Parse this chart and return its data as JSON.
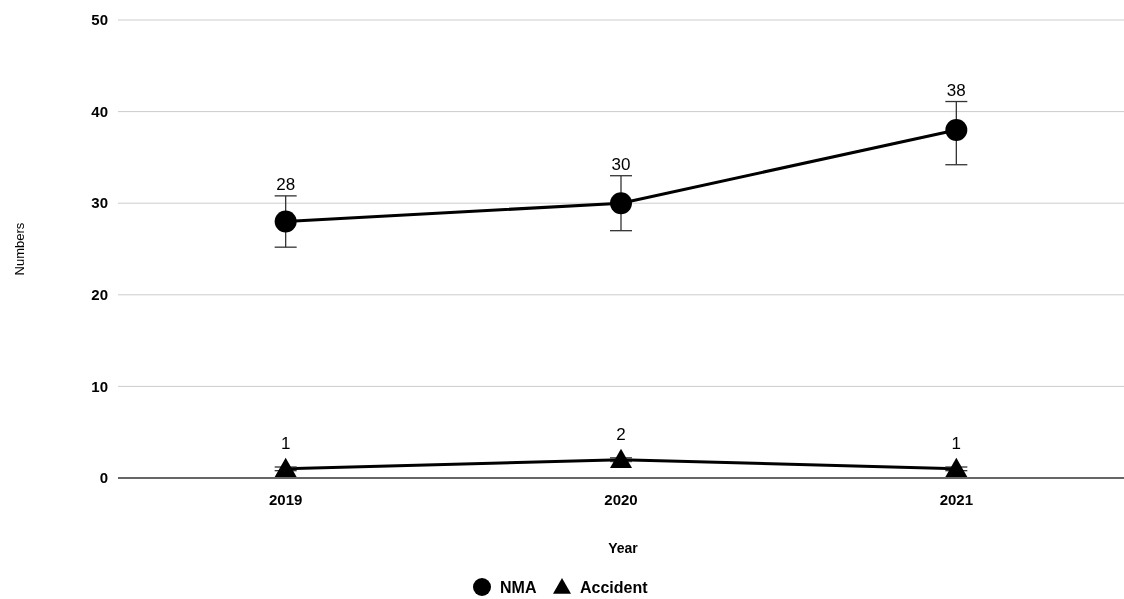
{
  "chart_data": {
    "type": "line",
    "xlabel": "Year",
    "ylabel": "Numbers",
    "categories": [
      "2019",
      "2020",
      "2021"
    ],
    "series": [
      {
        "name": "NMA",
        "color": "#000000",
        "marker": "circle",
        "values": [
          28,
          30,
          38
        ],
        "errors": [
          2.8,
          3,
          [
            34.2,
            41.1
          ]
        ]
      },
      {
        "name": "Accident",
        "color": "#000000",
        "marker": "triangle",
        "values": [
          1,
          2,
          1
        ],
        "errors": [
          0.2,
          0.2,
          0.2
        ]
      }
    ],
    "ylim": [
      0,
      50
    ],
    "yticks": [
      0,
      10,
      20,
      30,
      40,
      50
    ],
    "grid": "y",
    "legend": "bottom",
    "data_labels": true,
    "line_style": "solid"
  }
}
